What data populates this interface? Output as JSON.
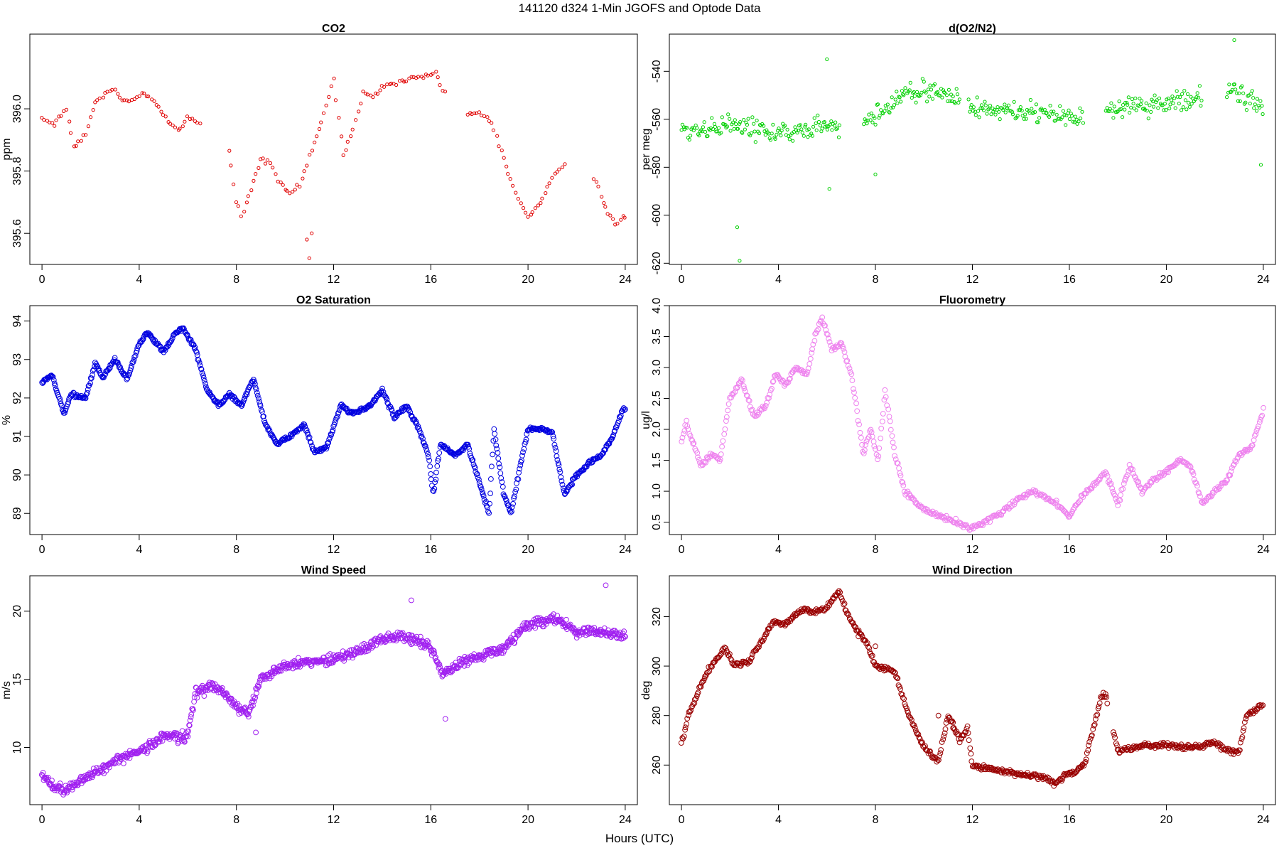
{
  "figure": {
    "title": "141120   d324   1-Min  JGOFS and Optode Data",
    "xlabel": "Hours (UTC)"
  },
  "chart_data": [
    {
      "id": "co2",
      "type": "scatter",
      "title": "CO2",
      "ylabel": "ppm",
      "color": "#e00000",
      "marker": "small-circle",
      "xlim": [
        -0.5,
        24.5
      ],
      "ylim": [
        395.5,
        396.24
      ],
      "xticks": [
        0,
        4,
        8,
        12,
        16,
        20,
        24
      ],
      "yticks": [
        395.6,
        395.8,
        396.0
      ],
      "ytick_labels": [
        "395.6",
        "395.8",
        "396.0"
      ],
      "x_step": 0.1,
      "jitter": 0.012,
      "trend_x": [
        0,
        0.5,
        1.0,
        1.3,
        1.8,
        2.2,
        2.6,
        3.0,
        3.4,
        3.8,
        4.3,
        4.8,
        5.2,
        5.6,
        6.0,
        6.5,
        7.7,
        8.0,
        8.2,
        8.6,
        9.0,
        9.4,
        9.8,
        10.2,
        10.6,
        11.0,
        11.5,
        12.0,
        12.4,
        12.8,
        13.2,
        13.6,
        14.0,
        14.6,
        15.2,
        15.7,
        16.2,
        16.5,
        17.5,
        18.0,
        18.5,
        19.0,
        19.5,
        20.0,
        20.5,
        21.0,
        21.5,
        22.8,
        23.2,
        23.6,
        23.9
      ],
      "trend_y": [
        395.97,
        395.95,
        396.0,
        395.88,
        395.92,
        396.02,
        396.05,
        396.06,
        396.02,
        396.03,
        396.05,
        396.0,
        395.96,
        395.93,
        395.97,
        395.95,
        395.87,
        395.7,
        395.66,
        395.74,
        395.84,
        395.83,
        395.76,
        395.73,
        395.75,
        395.85,
        395.95,
        396.1,
        395.85,
        395.94,
        396.05,
        396.04,
        396.07,
        396.08,
        396.1,
        396.1,
        396.12,
        396.06,
        395.98,
        395.99,
        395.95,
        395.84,
        395.73,
        395.65,
        395.7,
        395.78,
        395.82,
        395.77,
        395.68,
        395.63,
        395.65
      ],
      "gaps": [
        [
          6.55,
          7.6
        ],
        [
          16.6,
          17.4
        ],
        [
          21.6,
          22.7
        ]
      ],
      "spikes": [
        [
          11.0,
          395.52
        ],
        [
          10.9,
          395.58
        ],
        [
          11.1,
          395.6
        ]
      ]
    },
    {
      "id": "o2n2",
      "type": "scatter",
      "title": "d(O2/N2)",
      "ylabel": "per meg",
      "color": "#00d000",
      "marker": "small-circle",
      "xlim": [
        -0.5,
        24.5
      ],
      "ylim": [
        -620.5,
        -524.5
      ],
      "xticks": [
        0,
        4,
        8,
        12,
        16,
        20,
        24
      ],
      "yticks": [
        -620,
        -600,
        -580,
        -560,
        -540
      ],
      "ytick_labels": [
        "-620",
        "-600",
        "-580",
        "-560",
        "-540"
      ],
      "x_step": 0.045,
      "jitter": 6.5,
      "trend_x": [
        0,
        2,
        4,
        6,
        7.5,
        8.5,
        9,
        10,
        11.5,
        12,
        14,
        16,
        17,
        18,
        20,
        21.5,
        22.5,
        24
      ],
      "trend_y": [
        -565,
        -562,
        -566,
        -563,
        -562,
        -555,
        -550,
        -548,
        -551,
        -555,
        -557,
        -559,
        -558,
        -556,
        -553,
        -551,
        -548,
        -555
      ],
      "gaps": [
        [
          6.55,
          7.5
        ],
        [
          11.5,
          11.8
        ],
        [
          16.6,
          17.5
        ],
        [
          21.5,
          22.5
        ]
      ],
      "spikes": [
        [
          2.3,
          -605
        ],
        [
          2.4,
          -619
        ],
        [
          6.1,
          -589
        ],
        [
          8.0,
          -583
        ],
        [
          6.0,
          -535
        ],
        [
          22.8,
          -527
        ],
        [
          23.9,
          -579
        ]
      ]
    },
    {
      "id": "o2sat",
      "type": "scatter",
      "title": "O2 Saturation",
      "ylabel": "%",
      "color": "#0000e0",
      "marker": "circle",
      "xlim": [
        -0.5,
        24.5
      ],
      "ylim": [
        88.45,
        94.4
      ],
      "xticks": [
        0,
        4,
        8,
        12,
        16,
        20,
        24
      ],
      "yticks": [
        89,
        90,
        91,
        92,
        93,
        94
      ],
      "ytick_labels": [
        "89",
        "90",
        "91",
        "92",
        "93",
        "94"
      ],
      "x_step": 0.03,
      "jitter": 0.07,
      "trend_x": [
        0,
        0.4,
        0.9,
        1.2,
        1.8,
        2.2,
        2.5,
        3.0,
        3.5,
        4.0,
        4.3,
        4.6,
        5.0,
        5.5,
        5.8,
        6.3,
        6.8,
        7.3,
        7.7,
        8.2,
        8.7,
        9.2,
        9.7,
        10.2,
        10.8,
        11.2,
        11.7,
        12.3,
        12.8,
        13.5,
        14.0,
        14.5,
        15.0,
        15.5,
        15.9,
        16.1,
        16.4,
        17.0,
        17.5,
        18.0,
        18.4,
        18.6,
        19.0,
        19.3,
        19.7,
        20.0,
        20.5,
        21.0,
        21.5,
        22.0,
        22.5,
        23.0,
        23.5,
        23.9
      ],
      "trend_y": [
        92.4,
        92.6,
        91.6,
        92.1,
        92.0,
        92.9,
        92.5,
        93.0,
        92.5,
        93.4,
        93.7,
        93.5,
        93.2,
        93.7,
        93.8,
        93.3,
        92.2,
        91.8,
        92.1,
        91.8,
        92.5,
        91.3,
        90.8,
        91.0,
        91.3,
        90.6,
        90.7,
        91.8,
        91.6,
        91.8,
        92.2,
        91.5,
        91.8,
        91.2,
        90.5,
        89.5,
        90.8,
        90.5,
        90.8,
        89.8,
        89.0,
        91.2,
        89.5,
        89.0,
        90.3,
        91.2,
        91.2,
        91.1,
        89.5,
        90.0,
        90.3,
        90.5,
        91.0,
        91.7
      ],
      "gaps": [],
      "spikes": []
    },
    {
      "id": "fluoro",
      "type": "scatter",
      "title": "Fluorometry",
      "ylabel": "ug/l",
      "color": "#ee82ee",
      "marker": "circle",
      "xlim": [
        -0.5,
        24.5
      ],
      "ylim": [
        0.3,
        4.0
      ],
      "xticks": [
        0,
        4,
        8,
        12,
        16,
        20,
        24
      ],
      "yticks": [
        0.5,
        1.0,
        1.5,
        2.0,
        2.5,
        3.0,
        3.5,
        4.0
      ],
      "ytick_labels": [
        "0.5",
        "1.0",
        "1.5",
        "2.0",
        "2.5",
        "3.0",
        "3.5",
        "4.0"
      ],
      "x_step": 0.04,
      "jitter": 0.06,
      "trend_x": [
        0,
        0.2,
        0.8,
        1.2,
        1.6,
        2.0,
        2.5,
        3.0,
        3.5,
        3.9,
        4.3,
        4.7,
        5.2,
        5.5,
        5.8,
        6.2,
        6.6,
        7.0,
        7.5,
        7.8,
        8.1,
        8.4,
        8.8,
        9.2,
        10,
        11,
        12,
        12.5,
        13,
        14,
        14.5,
        15.5,
        16.0,
        16.5,
        17,
        17.5,
        18.0,
        18.5,
        19,
        19.5,
        20,
        20.5,
        21.0,
        21.5,
        22,
        22.5,
        23,
        23.5,
        24
      ],
      "trend_y": [
        1.8,
        2.1,
        1.4,
        1.6,
        1.5,
        2.5,
        2.8,
        2.2,
        2.4,
        2.9,
        2.7,
        3.0,
        2.9,
        3.5,
        3.8,
        3.3,
        3.4,
        2.9,
        1.6,
        2.0,
        1.5,
        2.6,
        1.6,
        1.0,
        0.7,
        0.55,
        0.4,
        0.5,
        0.6,
        0.9,
        1.0,
        0.8,
        0.6,
        0.9,
        1.1,
        1.3,
        0.8,
        1.4,
        1.0,
        1.2,
        1.3,
        1.5,
        1.4,
        0.8,
        1.0,
        1.2,
        1.6,
        1.7,
        2.3
      ],
      "gaps": [],
      "spikes": []
    },
    {
      "id": "wspd",
      "type": "scatter",
      "title": "Wind Speed",
      "ylabel": "m/s",
      "color": "#a020f0",
      "marker": "circle",
      "xlim": [
        -0.5,
        24.5
      ],
      "ylim": [
        5.8,
        22.6
      ],
      "xticks": [
        0,
        4,
        8,
        12,
        16,
        20,
        24
      ],
      "yticks": [
        10,
        15,
        20
      ],
      "ytick_labels": [
        "10",
        "15",
        "20"
      ],
      "x_step": 0.025,
      "jitter": 0.55,
      "trend_x": [
        0,
        0.5,
        1.0,
        1.5,
        2,
        3,
        4,
        5,
        6,
        6.3,
        7,
        7.5,
        8,
        8.5,
        9,
        10,
        11,
        12,
        13,
        14,
        15,
        16,
        16.5,
        17,
        18,
        19,
        20,
        21,
        22,
        23,
        24
      ],
      "trend_y": [
        8.0,
        7.0,
        6.8,
        7.5,
        8.0,
        9.0,
        9.7,
        10.8,
        10.8,
        14.0,
        14.5,
        14.0,
        13.0,
        12.5,
        15.0,
        16.0,
        16.3,
        16.5,
        17.0,
        18.0,
        18.2,
        17.3,
        15.5,
        16.0,
        16.7,
        17.3,
        19.0,
        19.5,
        18.5,
        18.5,
        18.2
      ],
      "gaps": [],
      "spikes": [
        [
          16.6,
          12.1
        ],
        [
          23.2,
          21.9
        ],
        [
          15.2,
          20.8
        ],
        [
          8.8,
          11.1
        ]
      ]
    },
    {
      "id": "wdir",
      "type": "scatter",
      "title": "Wind Direction",
      "ylabel": "deg",
      "color": "#990000",
      "marker": "circle",
      "xlim": [
        -0.5,
        24.5
      ],
      "ylim": [
        244,
        336.5
      ],
      "xticks": [
        0,
        4,
        8,
        12,
        16,
        20,
        24
      ],
      "yticks": [
        260,
        280,
        300,
        320
      ],
      "ytick_labels": [
        "260",
        "280",
        "300",
        "320"
      ],
      "x_step": 0.035,
      "jitter": 1.5,
      "trend_x": [
        0,
        0.3,
        0.8,
        1.2,
        1.8,
        2.2,
        2.8,
        3.3,
        3.8,
        4.3,
        5.0,
        5.5,
        6.0,
        6.5,
        6.8,
        7.2,
        7.6,
        8.0,
        8.5,
        8.8,
        9.2,
        9.6,
        10.0,
        10.4,
        10.6,
        11.0,
        11.5,
        11.8,
        12.0,
        13.0,
        14.0,
        15.0,
        15.4,
        15.8,
        16.2,
        16.6,
        17.3,
        17.5,
        18.0,
        19.0,
        20.0,
        21.0,
        22.0,
        22.5,
        23.0,
        23.3,
        23.9
      ],
      "trend_y": [
        269,
        280,
        292,
        300,
        307,
        300,
        302,
        310,
        318,
        317,
        323,
        322,
        324,
        330,
        322,
        315,
        310,
        300,
        299,
        298,
        285,
        275,
        268,
        263,
        262,
        280,
        270,
        275,
        260,
        258,
        256,
        255,
        252,
        256,
        257,
        260,
        287,
        289,
        265,
        268,
        268,
        267,
        269,
        266,
        265,
        280,
        284
      ],
      "gaps": [
        [
          17.6,
          17.8
        ]
      ],
      "spikes": [
        [
          7.3,
          312
        ],
        [
          8.0,
          308
        ],
        [
          10.6,
          280
        ],
        [
          11.2,
          275
        ]
      ]
    }
  ]
}
